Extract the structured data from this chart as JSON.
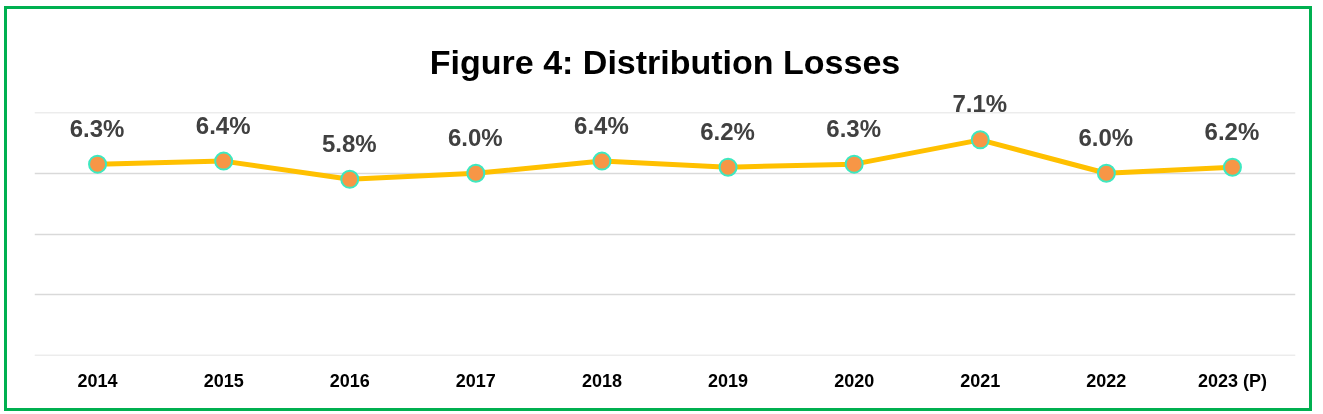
{
  "chart_data": {
    "type": "line",
    "title": "Figure 4: Distribution Losses",
    "categories": [
      "2014",
      "2015",
      "2016",
      "2017",
      "2018",
      "2019",
      "2020",
      "2021",
      "2022",
      "2023 (P)"
    ],
    "series": [
      {
        "color": "#ffc000",
        "colors": [
          "#f79646",
          "#f79646",
          "#f79646",
          "#f79646",
          "#f79646",
          "#f79646",
          "#f79646",
          "#f79646",
          "#f79646",
          "#f79646"
        ],
        "values": [
          6.3,
          6.4,
          5.8,
          6.0,
          6.4,
          6.2,
          6.3,
          7.1,
          6.0,
          6.2
        ],
        "value_labels": [
          "6.3%",
          "6.4%",
          "5.8%",
          "6.0%",
          "6.4%",
          "6.2%",
          "6.3%",
          "7.1%",
          "6.0%",
          "6.2%"
        ]
      }
    ],
    "ylim": [
      0,
      8
    ],
    "yticks": [
      {
        "value": 0,
        "label": null
      },
      {
        "value": 2,
        "label": null
      },
      {
        "value": 4,
        "label": null
      },
      {
        "value": 6,
        "label": null
      },
      {
        "value": 8,
        "label": null
      }
    ],
    "tick_labels": "x",
    "grid": "y",
    "marker": "circle",
    "line_style": "solid"
  }
}
